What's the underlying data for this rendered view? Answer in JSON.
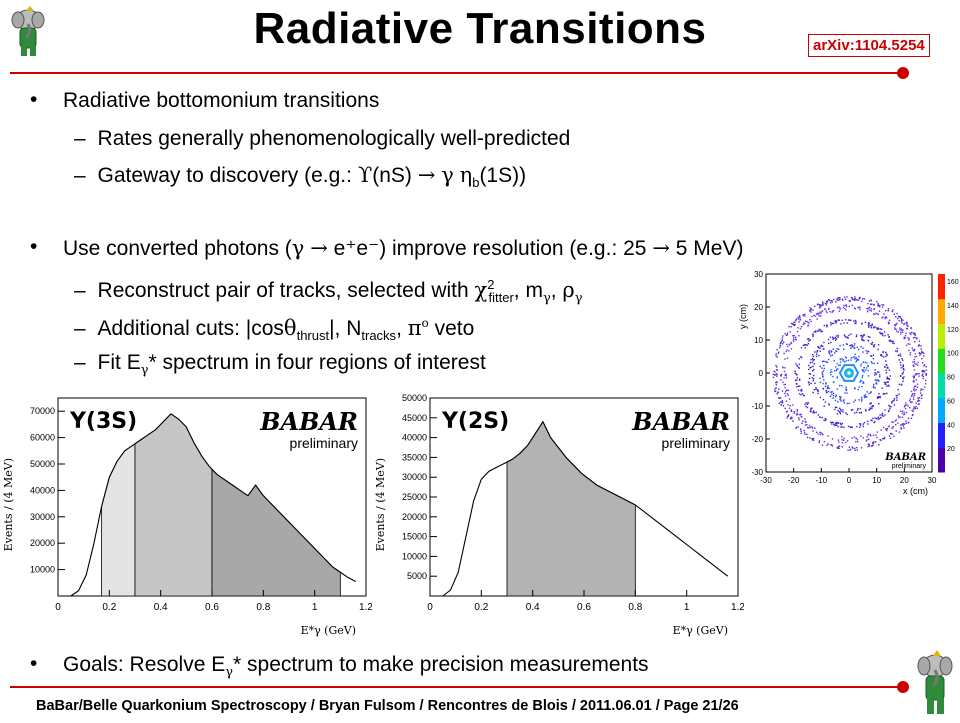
{
  "header": {
    "title": "Radiative Transitions",
    "arxiv": "arXiv:1104.5254"
  },
  "bullets": {
    "b1": "Radiative bottomonium transitions",
    "b1_1": "Rates generally phenomenologically well-predicted",
    "b1_2_pre": "Gateway to discovery (e.g.: ",
    "b1_2_nS": "(nS) ",
    "b1_2_eta": "η",
    "b1_2_sub": "b",
    "b1_2_post": "(1S))",
    "b2_pre": "Use converted photons (",
    "b2_ee": " e⁺e⁻",
    "b2_post": ") improve resolution (e.g.: 25 ",
    "b2_end": " 5 MeV)",
    "b2_1_pre": "Reconstruct pair of tracks, selected with ",
    "b2_1_sup": "2",
    "b2_1_sub": "fitter",
    "b2_1_mid": ", m",
    "b2_1_end": ", ",
    "b2_2_pre": "Additional cuts: |cos",
    "b2_2_sub1": "thrust",
    "b2_2_mid": "|, N",
    "b2_2_sub2": "tracks",
    "b2_2_sep": ", ",
    "b2_2_end": " veto",
    "b2_3_pre": "Fit E",
    "b2_3_post": "* spectrum in four regions of interest",
    "b3_pre": "Goals: Resolve E",
    "b3_post": "* spectrum to make precision measurements"
  },
  "chart_data": [
    {
      "type": "area",
      "title": "Υ(3S)",
      "watermark": "BABAR",
      "watermark_sub": "preliminary",
      "xlabel": "E*γ (GeV)",
      "ylabel": "Events / (4 MeV)",
      "xlim": [
        0,
        1.2
      ],
      "ylim": [
        0,
        75000
      ],
      "xticks": [
        "0",
        "0.2",
        "0.4",
        "0.6",
        "0.8",
        "1",
        "1.2"
      ],
      "yticks": [
        "10000",
        "20000",
        "30000",
        "40000",
        "50000",
        "60000",
        "70000"
      ],
      "x": [
        0.05,
        0.08,
        0.11,
        0.14,
        0.17,
        0.2,
        0.23,
        0.26,
        0.29,
        0.32,
        0.35,
        0.38,
        0.41,
        0.44,
        0.47,
        0.5,
        0.53,
        0.56,
        0.59,
        0.62,
        0.65,
        0.68,
        0.71,
        0.74,
        0.77,
        0.8,
        0.83,
        0.86,
        0.89,
        0.92,
        0.95,
        0.98,
        1.01,
        1.04,
        1.07,
        1.1,
        1.13,
        1.16
      ],
      "y": [
        0,
        2000,
        8000,
        20000,
        34000,
        45000,
        51000,
        55000,
        57000,
        59000,
        61000,
        63000,
        66000,
        69000,
        67000,
        64000,
        58000,
        53000,
        49000,
        46000,
        44000,
        42000,
        40000,
        38000,
        42000,
        38000,
        35000,
        32000,
        29000,
        26000,
        23000,
        20000,
        17000,
        14000,
        11000,
        9000,
        7000,
        5500
      ],
      "regions": [
        [
          0.17,
          0.3
        ],
        [
          0.3,
          0.6
        ],
        [
          0.6,
          1.1
        ]
      ]
    },
    {
      "type": "area",
      "title": "Υ(2S)",
      "watermark": "BABAR",
      "watermark_sub": "preliminary",
      "xlabel": "E*γ (GeV)",
      "ylabel": "Events / (4 MeV)",
      "xlim": [
        0,
        1.2
      ],
      "ylim": [
        0,
        50000
      ],
      "xticks": [
        "0",
        "0.2",
        "0.4",
        "0.6",
        "0.8",
        "1",
        "1.2"
      ],
      "yticks": [
        "5000",
        "10000",
        "15000",
        "20000",
        "25000",
        "30000",
        "35000",
        "40000",
        "45000",
        "50000"
      ],
      "x": [
        0.05,
        0.08,
        0.11,
        0.14,
        0.17,
        0.2,
        0.23,
        0.26,
        0.29,
        0.32,
        0.35,
        0.38,
        0.41,
        0.44,
        0.47,
        0.5,
        0.53,
        0.56,
        0.59,
        0.62,
        0.65,
        0.68,
        0.71,
        0.74,
        0.77,
        0.8,
        0.83,
        0.86,
        0.89,
        0.92,
        0.95,
        0.98,
        1.01,
        1.04,
        1.07,
        1.1,
        1.13,
        1.16
      ],
      "y": [
        0,
        1500,
        6000,
        15000,
        24000,
        29500,
        31500,
        32500,
        33500,
        34500,
        36000,
        38000,
        41000,
        44000,
        40000,
        37500,
        35000,
        33000,
        31000,
        29500,
        28000,
        27000,
        26000,
        25000,
        24000,
        23000,
        21500,
        20000,
        18500,
        17000,
        15500,
        14000,
        12500,
        11000,
        9500,
        8000,
        6500,
        5000
      ],
      "regions": [
        [
          0.3,
          0.8
        ]
      ]
    },
    {
      "type": "heatmap",
      "watermark": "BABAR",
      "watermark_sub": "preliminary",
      "xlabel": "x (cm)",
      "ylabel": "y (cm)",
      "xlim": [
        -30,
        30
      ],
      "ylim": [
        -30,
        30
      ],
      "xticks": [
        "-30",
        "-20",
        "-10",
        "0",
        "10",
        "20",
        "30"
      ],
      "yticks": [
        "-30",
        "-20",
        "-10",
        "0",
        "10",
        "20",
        "30"
      ],
      "colorbar_ticks": [
        "20",
        "40",
        "60",
        "80",
        "100",
        "120",
        "140",
        "160"
      ]
    }
  ],
  "footer": {
    "text": "BaBar/Belle Quarkonium Spectroscopy / Bryan Fulsom / Rencontres de Blois / 2011.06.01 / Page 21/26"
  }
}
